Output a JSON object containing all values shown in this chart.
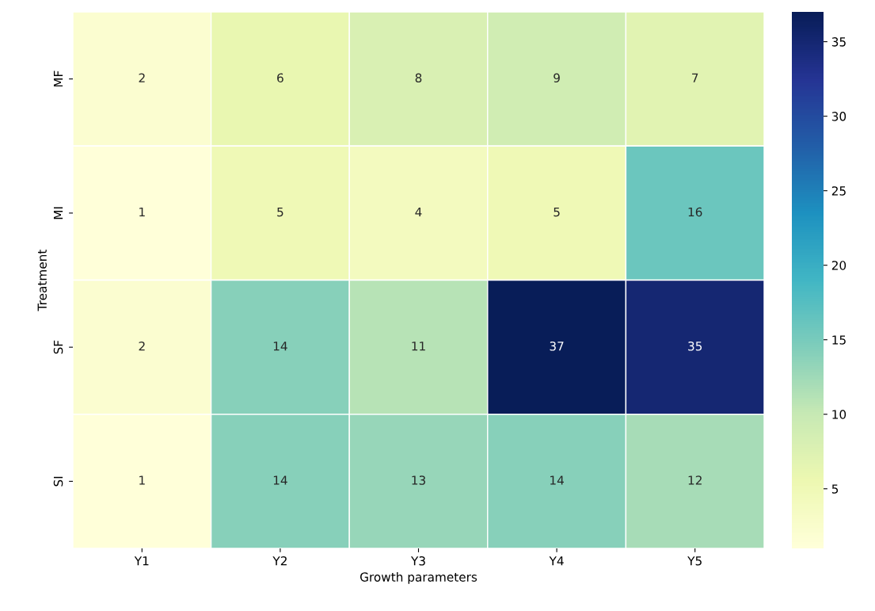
{
  "chart_data": {
    "type": "heatmap",
    "xlabel": "Growth parameters",
    "ylabel": "Treatment",
    "categories": [
      "Y1",
      "Y2",
      "Y3",
      "Y4",
      "Y5"
    ],
    "y_categories": [
      "MF",
      "MI",
      "SF",
      "SI"
    ],
    "cells": [
      [
        2,
        6,
        8,
        9,
        7
      ],
      [
        1,
        5,
        4,
        5,
        16
      ],
      [
        2,
        14,
        11,
        37,
        35
      ],
      [
        1,
        14,
        13,
        14,
        12
      ]
    ],
    "data_labels": true,
    "clim": [
      1,
      37
    ],
    "cticks": [
      5,
      10,
      15,
      20,
      25,
      30,
      35
    ]
  }
}
